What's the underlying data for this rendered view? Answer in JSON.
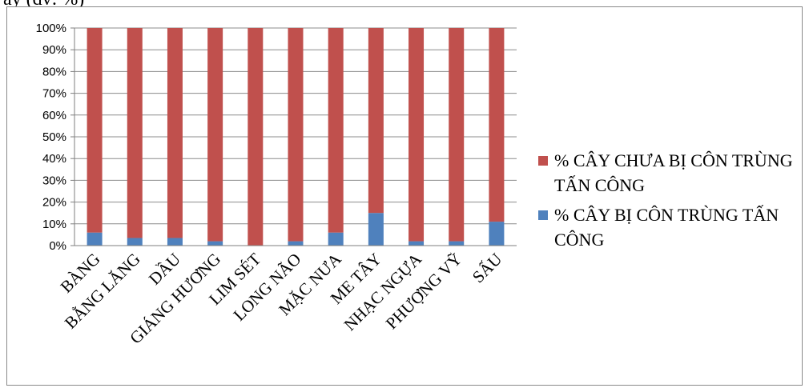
{
  "header": {
    "cut_text": "ày (đv: %)"
  },
  "colors": {
    "attacked": "#4f81bd",
    "not_attacked": "#c0504d",
    "grid": "#8c8c8c",
    "axis": "#7f7f7f"
  },
  "legend": {
    "not_attacked": "% CÂY CHƯA BỊ CÔN TRÙNG TẤN CÔNG",
    "attacked": "% CÂY BỊ CÔN TRÙNG TẤN CÔNG"
  },
  "chart_data": {
    "type": "bar",
    "stacked": true,
    "percent_stacked": true,
    "categories": [
      "BÀNG",
      "BẰNG LĂNG",
      "DẦU",
      "GIÁNG HƯƠNG",
      "LIM SÉT",
      "LONG NÃO",
      "MẶC NƯA",
      "ME TÂY",
      "NHẠC NGỰA",
      "PHƯỢNG VỸ",
      "SẤU"
    ],
    "series": [
      {
        "name": "% CÂY BỊ CÔN TRÙNG TẤN CÔNG",
        "values": [
          6,
          3.5,
          3.5,
          2,
          0,
          2,
          6,
          15,
          2,
          2,
          11
        ]
      },
      {
        "name": "% CÂY CHƯA BỊ CÔN TRÙNG TẤN CÔNG",
        "values": [
          94,
          96.5,
          96.5,
          98,
          100,
          98,
          94,
          85,
          98,
          98,
          89
        ]
      }
    ],
    "yticks": [
      "0%",
      "10%",
      "20%",
      "30%",
      "40%",
      "50%",
      "60%",
      "70%",
      "80%",
      "90%",
      "100%"
    ],
    "ylim": [
      0,
      100
    ],
    "grid": true,
    "legend_position": "right"
  }
}
